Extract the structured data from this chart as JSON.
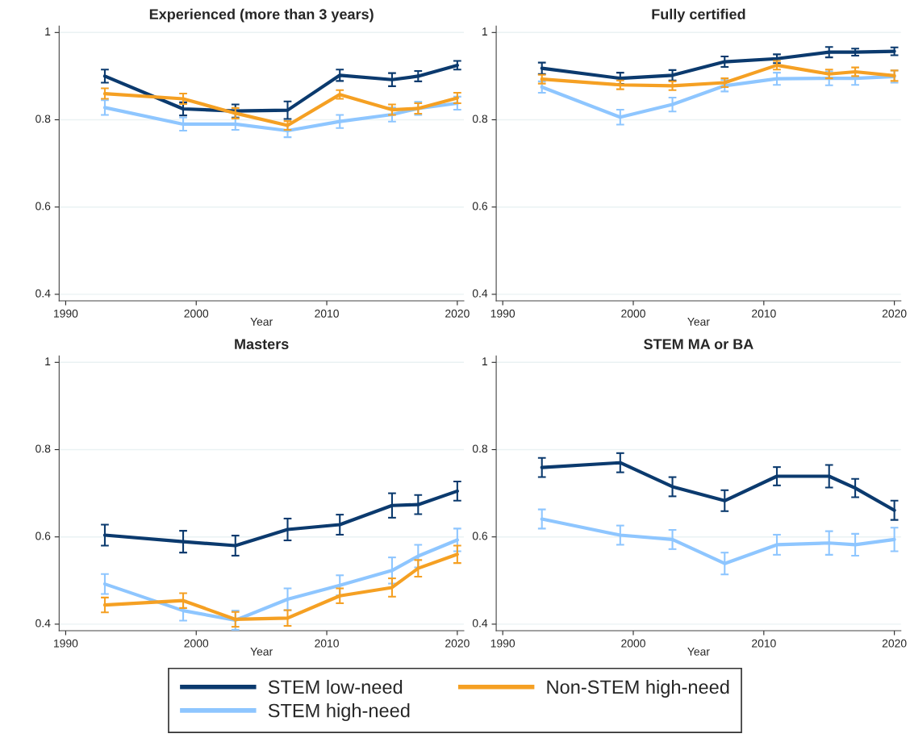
{
  "chart_data": [
    {
      "type": "line",
      "title": "Experienced (more than 3 years)",
      "xlabel": "Year",
      "x": [
        1993,
        1999,
        2003,
        2007,
        2011,
        2015,
        2017,
        2020
      ],
      "xlim": [
        1989.5,
        2020.5
      ],
      "xticks": [
        1990,
        2000,
        2010,
        2020
      ],
      "ylim": [
        0.385,
        1.015
      ],
      "yticks": [
        0.4,
        0.6,
        0.8,
        1
      ],
      "grid": "y",
      "legend": "bottom",
      "series": [
        {
          "name": "STEM low-need",
          "color": "#0b3a6e",
          "values": [
            0.9,
            0.825,
            0.82,
            0.822,
            0.902,
            0.892,
            0.9,
            0.925
          ],
          "errors": [
            0.015,
            0.015,
            0.015,
            0.02,
            0.013,
            0.015,
            0.012,
            0.01
          ]
        },
        {
          "name": "STEM high-need",
          "color": "#8ec6ff",
          "values": [
            0.828,
            0.79,
            0.79,
            0.775,
            0.796,
            0.812,
            0.826,
            0.838
          ],
          "errors": [
            0.017,
            0.015,
            0.013,
            0.015,
            0.015,
            0.016,
            0.015,
            0.015
          ]
        },
        {
          "name": "Non-STEM high-need",
          "color": "#f5a023",
          "values": [
            0.86,
            0.848,
            0.815,
            0.787,
            0.858,
            0.823,
            0.826,
            0.85
          ],
          "errors": [
            0.012,
            0.012,
            0.012,
            0.01,
            0.01,
            0.012,
            0.012,
            0.012
          ]
        }
      ]
    },
    {
      "type": "line",
      "title": "Fully certified",
      "xlabel": "Year",
      "x": [
        1993,
        1999,
        2003,
        2007,
        2011,
        2015,
        2017,
        2020
      ],
      "xlim": [
        1989.5,
        2020.5
      ],
      "xticks": [
        1990,
        2000,
        2010,
        2020
      ],
      "ylim": [
        0.385,
        1.015
      ],
      "yticks": [
        0.4,
        0.6,
        0.8,
        1
      ],
      "grid": "y",
      "series": [
        {
          "color": "#0b3a6e",
          "values": [
            0.918,
            0.895,
            0.902,
            0.933,
            0.94,
            0.955,
            0.955,
            0.957
          ],
          "errors": [
            0.013,
            0.013,
            0.012,
            0.012,
            0.01,
            0.012,
            0.008,
            0.009
          ]
        },
        {
          "color": "#8ec6ff",
          "values": [
            0.875,
            0.806,
            0.835,
            0.878,
            0.894,
            0.895,
            0.895,
            0.899
          ],
          "errors": [
            0.013,
            0.017,
            0.016,
            0.013,
            0.014,
            0.016,
            0.015,
            0.014
          ]
        },
        {
          "color": "#f5a023",
          "values": [
            0.893,
            0.88,
            0.878,
            0.885,
            0.925,
            0.905,
            0.91,
            0.901
          ],
          "errors": [
            0.01,
            0.01,
            0.01,
            0.01,
            0.01,
            0.01,
            0.01,
            0.012
          ]
        }
      ]
    },
    {
      "type": "line",
      "title": "Masters",
      "xlabel": "Year",
      "x": [
        1993,
        1999,
        2003,
        2007,
        2011,
        2015,
        2017,
        2020
      ],
      "xlim": [
        1989.5,
        2020.5
      ],
      "xticks": [
        1990,
        2000,
        2010,
        2020
      ],
      "ylim": [
        0.385,
        1.015
      ],
      "yticks": [
        0.4,
        0.6,
        0.8,
        1
      ],
      "grid": "y",
      "series": [
        {
          "color": "#0b3a6e",
          "values": [
            0.604,
            0.589,
            0.58,
            0.617,
            0.628,
            0.672,
            0.674,
            0.705
          ],
          "errors": [
            0.024,
            0.025,
            0.023,
            0.025,
            0.023,
            0.028,
            0.022,
            0.022
          ]
        },
        {
          "color": "#8ec6ff",
          "values": [
            0.492,
            0.431,
            0.409,
            0.457,
            0.489,
            0.523,
            0.556,
            0.593
          ],
          "errors": [
            0.023,
            0.023,
            0.022,
            0.025,
            0.023,
            0.03,
            0.026,
            0.026
          ]
        },
        {
          "color": "#f5a023",
          "values": [
            0.444,
            0.454,
            0.411,
            0.414,
            0.465,
            0.484,
            0.528,
            0.56
          ],
          "errors": [
            0.017,
            0.017,
            0.017,
            0.018,
            0.017,
            0.021,
            0.019,
            0.02
          ]
        }
      ]
    },
    {
      "type": "line",
      "title": "STEM MA or BA",
      "xlabel": "Year",
      "x": [
        1993,
        1999,
        2003,
        2007,
        2011,
        2015,
        2017,
        2020
      ],
      "xlim": [
        1989.5,
        2020.5
      ],
      "xticks": [
        1990,
        2000,
        2010,
        2020
      ],
      "ylim": [
        0.385,
        1.015
      ],
      "yticks": [
        0.4,
        0.6,
        0.8,
        1
      ],
      "grid": "y",
      "series": [
        {
          "color": "#0b3a6e",
          "values": [
            0.759,
            0.77,
            0.715,
            0.683,
            0.739,
            0.739,
            0.712,
            0.661
          ],
          "errors": [
            0.022,
            0.022,
            0.022,
            0.024,
            0.021,
            0.026,
            0.021,
            0.022
          ]
        },
        {
          "color": "#8ec6ff",
          "values": [
            0.641,
            0.604,
            0.594,
            0.539,
            0.582,
            0.586,
            0.582,
            0.594
          ],
          "errors": [
            0.022,
            0.022,
            0.022,
            0.025,
            0.023,
            0.027,
            0.025,
            0.027
          ]
        }
      ]
    }
  ]
}
